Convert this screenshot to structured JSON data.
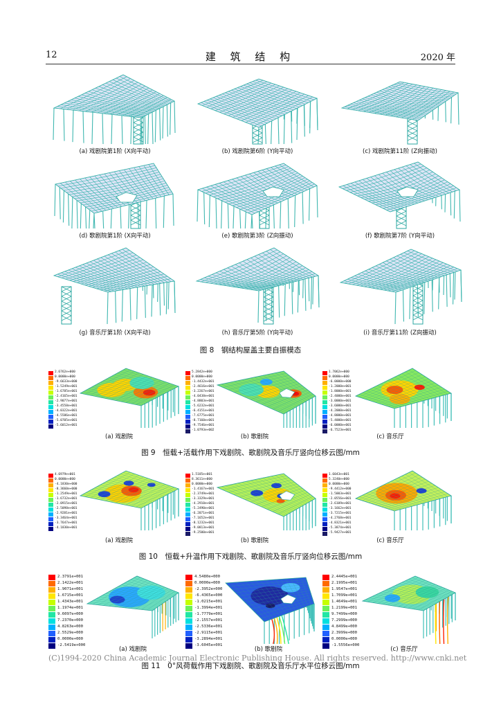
{
  "header": {
    "page_number": "12",
    "journal_title": "建 筑 结 构",
    "year": "2020 年"
  },
  "fig8": {
    "caption": "图 8　钢结构屋盖主要自振模态",
    "panels": [
      {
        "label": "(a) 戏剧院第1阶 (X向平动)"
      },
      {
        "label": "(b) 戏剧院第6阶 (Y向平动)"
      },
      {
        "label": "(c) 戏剧院第11阶 (Z向振动)"
      },
      {
        "label": "(d) 歌剧院第1阶 (X向平动)"
      },
      {
        "label": "(e) 歌剧院第3阶 (Z向振动)"
      },
      {
        "label": "(f) 歌剧院第7阶 (Y向平动)"
      },
      {
        "label": "(g) 音乐厅第1阶 (X向平动)"
      },
      {
        "label": "(h) 音乐厅第5阶 (Y向平动)"
      },
      {
        "label": "(i) 音乐厅第11阶 (Z向振动)"
      }
    ]
  },
  "fig9": {
    "caption": "图 9　恒载+活载作用下戏剧院、歌剧院及音乐厅竖向位移云图/mm",
    "panels": [
      {
        "label": "(a) 戏剧院",
        "legend": [
          "2.6762e+000",
          "0.0000e+000",
          "-9.6633e+000",
          "-1.5249e+001",
          "-1.6785e+001",
          "-2.4165e+001",
          "-2.9077e+001",
          "-3.4558e+001",
          "-4.0322e+001",
          "-4.5586e+001",
          "-5.0705e+001",
          "-5.6012e+001"
        ]
      },
      {
        "label": "(b) 歌剧院",
        "legend": [
          "5.2842e+000",
          "0.0000e+000",
          "-1.4432e+001",
          "-2.4616e+001",
          "-3.2267e+001",
          "-4.0438e+001",
          "-4.8803e+001",
          "-5.6232e+001",
          "-6.4151e+001",
          "-7.6775e+001",
          "-8.7160e+001",
          "-9.7546e+001",
          "-1.0793e+002"
        ]
      },
      {
        "label": "(c) 音乐厅",
        "legend": [
          "1.7062e+000",
          "0.0000e+000",
          "-6.0000e+000",
          "-1.2000e+001",
          "-1.8000e+001",
          "-2.4000e+001",
          "-3.0000e+001",
          "-3.6000e+001",
          "-4.2000e+001",
          "-4.8000e+001",
          "-5.4000e+001",
          "-6.0000e+001",
          "-6.7523e+001"
        ]
      }
    ]
  },
  "fig10": {
    "caption": "图 10　恒载+升温作用下戏剧院、歌剧院及音乐厅竖向位移云图/mm",
    "panels": [
      {
        "label": "(a) 戏剧院",
        "legend": [
          "4.6979e+001",
          "0.0000e+000",
          "-4.1830e+000",
          "-8.3660e+000",
          "-1.2549e+001",
          "-1.6732e+001",
          "-2.0915e+001",
          "-2.5098e+001",
          "-2.9281e+001",
          "-3.3464e+001",
          "-3.7647e+001",
          "-4.1830e+001"
        ]
      },
      {
        "label": "(b) 歌剧院",
        "legend": [
          "1.5185e+001",
          "8.3611e+000",
          "0.0000e+000",
          "-1.4167e+001",
          "-2.3749e+001",
          "-3.3329e+001",
          "-4.2910e+001",
          "-5.2490e+001",
          "-6.2071e+001",
          "-7.1652e+001",
          "-8.1232e+001",
          "-9.0813e+001",
          "-9.2500e+001"
        ]
      },
      {
        "label": "(c) 音乐厅",
        "legend": [
          "1.6043e+001",
          "5.3240e+000",
          "0.0000e+000",
          "-9.4412e+000",
          "-1.5003e+001",
          "-2.0556e+001",
          "-2.6109e+001",
          "-3.1662e+001",
          "-3.7215e+001",
          "-4.2768e+001",
          "-4.8321e+001",
          "-5.3874e+001",
          "-5.9427e+001"
        ]
      }
    ]
  },
  "fig11": {
    "caption": "图 11　0°风荷载作用下戏剧院、歌剧院及音乐厅水平位移云图/mm",
    "panels": [
      {
        "label": "(a) 戏剧院",
        "legend": [
          "2.3791e+001",
          "2.1422e+001",
          "1.9071e+001",
          "1.6715e+001",
          "1.4343e+001",
          "1.1974e+001",
          "9.6097e+000",
          "7.2370e+000",
          "4.8263e+000",
          "2.5529e+000",
          "0.0000e+000",
          "-2.5419e+000"
        ]
      },
      {
        "label": "(b) 歌剧院",
        "legend": [
          "4.5480e+000",
          "0.0000e+000",
          "-2.3952e+000",
          "-6.4365e+000",
          "-1.0215e+001",
          "-1.3994e+001",
          "-1.7779e+001",
          "-2.1557e+001",
          "-2.5336e+001",
          "-2.9115e+001",
          "-3.2894e+001",
          "-3.6045e+001"
        ]
      },
      {
        "label": "(c) 音乐厅",
        "legend": [
          "2.4445e+001",
          "2.1995e+001",
          "1.9547e+001",
          "1.7099e+001",
          "1.4649e+001",
          "1.2199e+001",
          "9.7499e+000",
          "7.2999e+000",
          "4.8499e+000",
          "2.3999e+000",
          "0.0000e+000",
          "-1.5556e+000"
        ]
      }
    ]
  },
  "legend_colors": [
    "#ff0000",
    "#ff6a00",
    "#ffb000",
    "#ffe600",
    "#c6ff00",
    "#6cf25a",
    "#22e6a4",
    "#00e0e0",
    "#00b0ff",
    "#2060ff",
    "#0020c0",
    "#000080",
    "#1a1a66"
  ],
  "footer": "(C)1994-2020 China Academic Journal Electronic Publishing House. All rights reserved.    http://www.cnki.net"
}
